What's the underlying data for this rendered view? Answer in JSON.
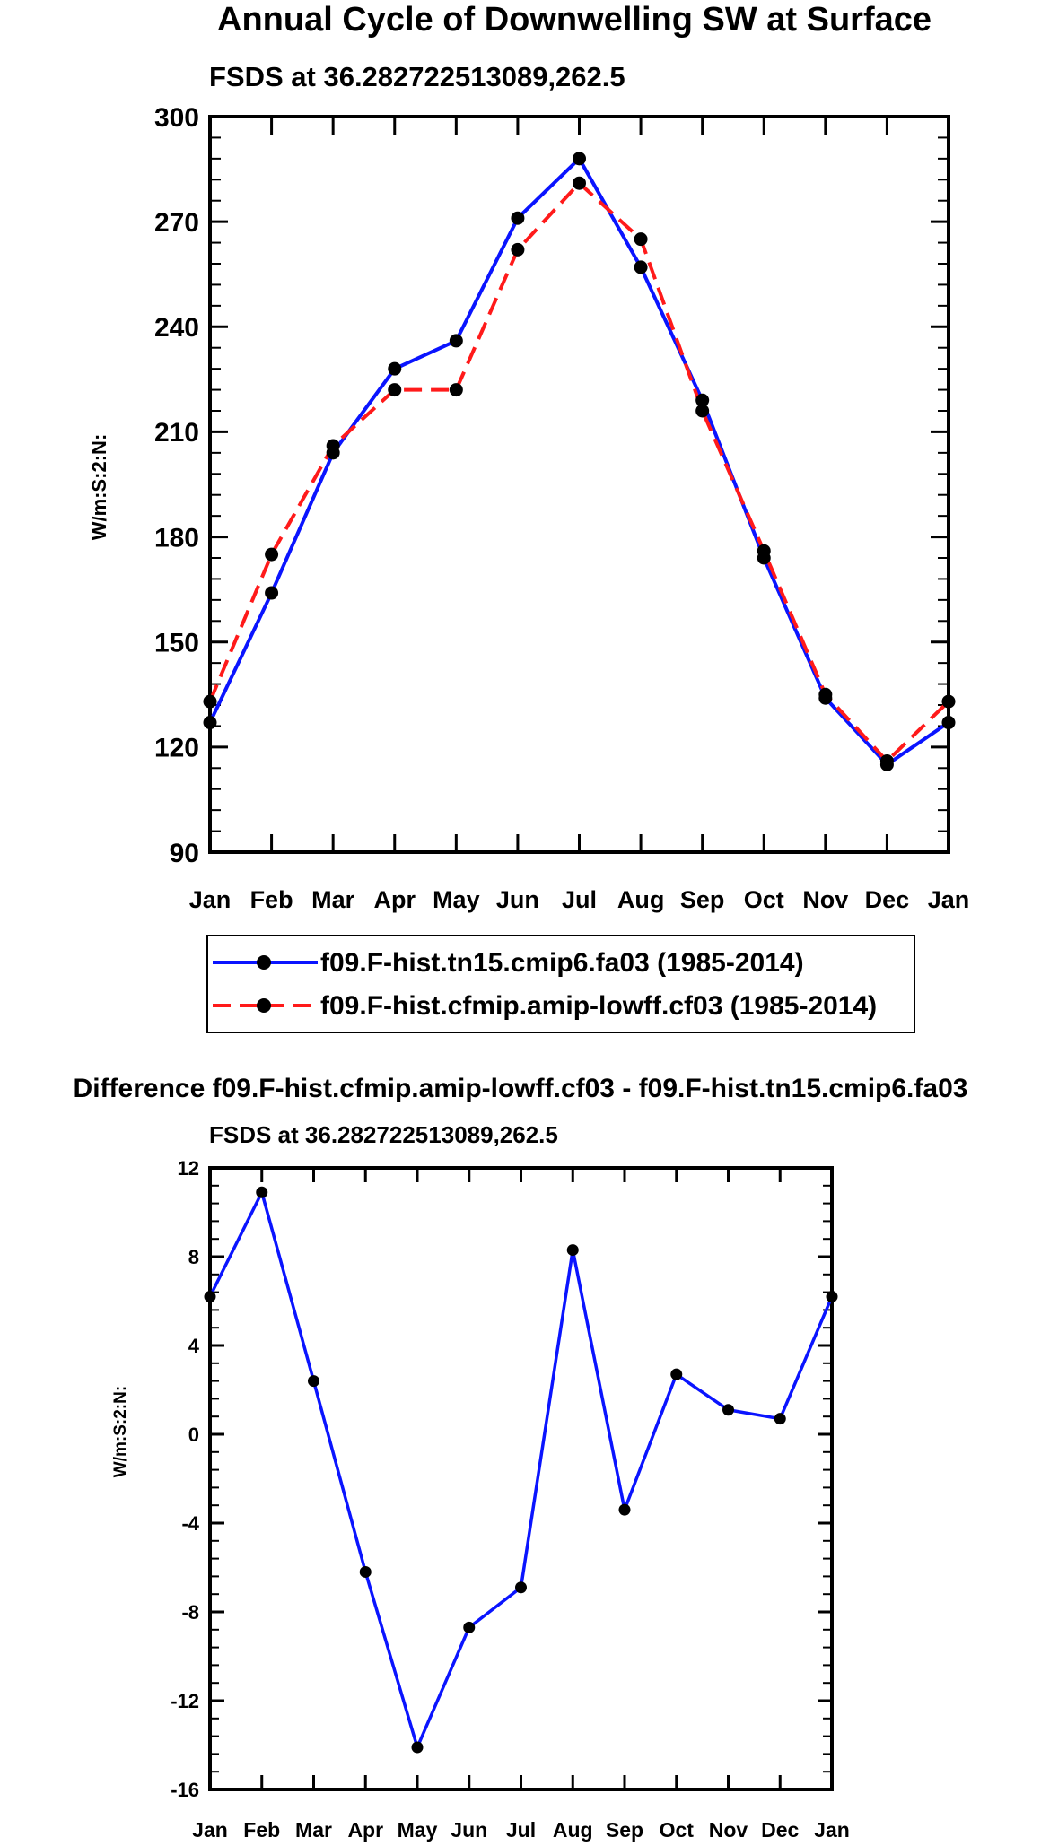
{
  "colors": {
    "axis": "#000000",
    "marker": "#000000",
    "series_a": "#0a14ff",
    "series_b": "#ff1a1a",
    "background": "#ffffff"
  },
  "chart_data": [
    {
      "type": "line",
      "title": "Annual Cycle of Downwelling SW at Surface",
      "subtitle": "FSDS at 36.282722513089,262.5",
      "xlabel": "",
      "ylabel": "W/m:S:2:N:",
      "categories": [
        "Jan",
        "Feb",
        "Mar",
        "Apr",
        "May",
        "Jun",
        "Jul",
        "Aug",
        "Sep",
        "Oct",
        "Nov",
        "Dec",
        "Jan"
      ],
      "ylim": [
        90,
        300
      ],
      "yticks": [
        90,
        120,
        150,
        180,
        210,
        240,
        270,
        300
      ],
      "grid": false,
      "legend_position": "below",
      "series": [
        {
          "name": "f09.F-hist.tn15.cmip6.fa03 (1985-2014)",
          "style": "solid",
          "color": "#0a14ff",
          "values": [
            127,
            164,
            204,
            228,
            236,
            271,
            288,
            257,
            219,
            174,
            134,
            115,
            127
          ]
        },
        {
          "name": "f09.F-hist.cfmip.amip-lowff.cf03 (1985-2014)",
          "style": "dashed",
          "color": "#ff1a1a",
          "values": [
            133,
            175,
            206,
            222,
            222,
            262,
            281,
            265,
            216,
            176,
            135,
            116,
            133
          ]
        }
      ]
    },
    {
      "type": "line",
      "title": "Difference f09.F-hist.cfmip.amip-lowff.cf03 - f09.F-hist.tn15.cmip6.fa03",
      "subtitle": "FSDS at 36.282722513089,262.5",
      "xlabel": "",
      "ylabel": "W/m:S:2:N:",
      "categories": [
        "Jan",
        "Feb",
        "Mar",
        "Apr",
        "May",
        "Jun",
        "Jul",
        "Aug",
        "Sep",
        "Oct",
        "Nov",
        "Dec",
        "Jan"
      ],
      "ylim": [
        -16,
        12
      ],
      "yticks": [
        -16,
        -12,
        -8,
        -4,
        0,
        4,
        8,
        12
      ],
      "grid": false,
      "series": [
        {
          "name": "difference",
          "style": "solid",
          "color": "#0a14ff",
          "values": [
            6.2,
            10.9,
            2.4,
            -6.2,
            -14.1,
            -8.7,
            -6.9,
            8.3,
            -3.4,
            2.7,
            1.1,
            0.7,
            6.2
          ]
        }
      ]
    }
  ]
}
